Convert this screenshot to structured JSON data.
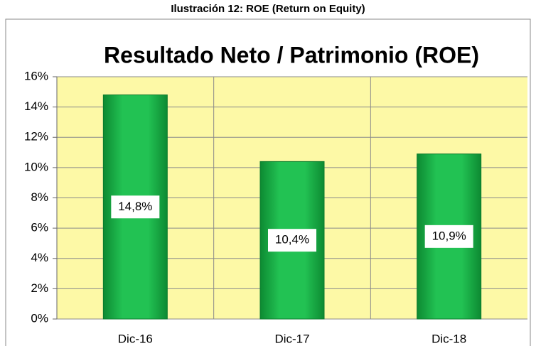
{
  "chart_data": {
    "type": "bar",
    "caption": "Ilustración 12: ROE (Return on Equity)",
    "title": "Resultado Neto / Patrimonio (ROE)",
    "categories": [
      "Dic-16",
      "Dic-17",
      "Dic-18"
    ],
    "values": [
      14.8,
      10.4,
      10.9
    ],
    "value_labels": [
      "14,8%",
      "10,4%",
      "10,9%"
    ],
    "color": "#1db64a",
    "ylim": [
      0,
      16
    ],
    "yticks": [
      {
        "value": 0,
        "label": "0%"
      },
      {
        "value": 2,
        "label": "2%"
      },
      {
        "value": 4,
        "label": "4%"
      },
      {
        "value": 6,
        "label": "6%"
      },
      {
        "value": 8,
        "label": "8%"
      },
      {
        "value": 10,
        "label": "10%"
      },
      {
        "value": 12,
        "label": "12%"
      },
      {
        "value": 14,
        "label": "14%"
      },
      {
        "value": 16,
        "label": "16%"
      }
    ],
    "grid": true
  }
}
